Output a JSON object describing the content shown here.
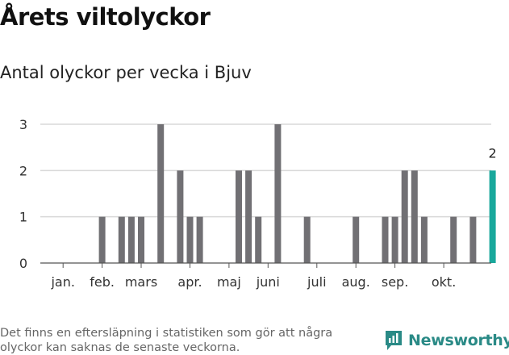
{
  "header": {
    "title": "Årets viltolyckor",
    "subtitle": "Antal olyckor per vecka i Bjuv"
  },
  "footer": {
    "note": "Det finns en eftersläpning i statistiken som gör att några olyckor kan saknas de senaste veckorna.",
    "brand": "Newsworthy"
  },
  "colors": {
    "bar": "#717074",
    "highlight": "#19a89c",
    "brand": "#2a8a86"
  },
  "chart_data": {
    "type": "bar",
    "title": "Årets viltolyckor",
    "subtitle": "Antal olyckor per vecka i Bjuv",
    "ylim": [
      0,
      3
    ],
    "yticks": [
      0,
      1,
      2,
      3
    ],
    "grid": true,
    "x_range": [
      1,
      45
    ],
    "month_labels": [
      {
        "label": "jan.",
        "week": 3
      },
      {
        "label": "feb.",
        "week": 7
      },
      {
        "label": "mars",
        "week": 11
      },
      {
        "label": "apr.",
        "week": 16
      },
      {
        "label": "maj",
        "week": 20
      },
      {
        "label": "juni",
        "week": 24
      },
      {
        "label": "juli",
        "week": 29
      },
      {
        "label": "aug.",
        "week": 33
      },
      {
        "label": "sep.",
        "week": 37
      },
      {
        "label": "okt.",
        "week": 42
      }
    ],
    "weeks": [
      7,
      9,
      10,
      11,
      13,
      15,
      16,
      17,
      21,
      22,
      23,
      25,
      28,
      33,
      36,
      37,
      38,
      39,
      40,
      43,
      45,
      47
    ],
    "values": [
      1,
      1,
      1,
      1,
      3,
      2,
      1,
      1,
      2,
      2,
      1,
      3,
      1,
      1,
      1,
      1,
      2,
      2,
      1,
      1,
      1,
      2
    ],
    "highlight_index": 21,
    "highlight_label": "2"
  }
}
